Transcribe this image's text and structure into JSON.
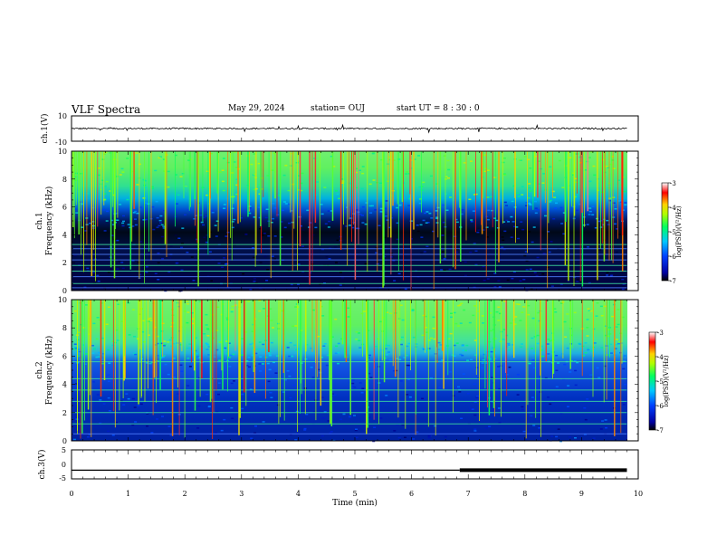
{
  "header": {
    "title": "VLF Spectra",
    "date": "May 29, 2024",
    "station": "station= OUJ",
    "start": "start  UT =   8  : 30 : 0"
  },
  "colors": {
    "waveform": "#000000",
    "background": "#ffffff"
  },
  "chart_data": [
    {
      "type": "line",
      "id": "ch1-waveform",
      "ylabel": "ch.1(V)",
      "ylim": [
        -10,
        10
      ],
      "yticks": [
        "10",
        "-10"
      ],
      "description_values": {
        "baseline": 0,
        "typical_amplitude": 1,
        "spike_max": 3
      }
    },
    {
      "type": "heatmap",
      "id": "ch1-spectrogram",
      "ylabel_top": "ch.1",
      "ylabel": "Frequency (kHz)",
      "ylim": [
        0,
        10
      ],
      "yticks": [
        "0",
        "2",
        "4",
        "6",
        "8",
        "10"
      ],
      "xlim": [
        0,
        10
      ],
      "colorbar": {
        "label": "log(PSD)(V²/Hz)",
        "range": [
          -7,
          -3
        ],
        "ticks": [
          "-3",
          "-4",
          "-5",
          "-6",
          "-7"
        ]
      },
      "bands_khz": [
        {
          "from": 0,
          "to": 4.5,
          "level": -6.6
        },
        {
          "from": 4.5,
          "to": 6.5,
          "level": -5.8
        },
        {
          "from": 6.5,
          "to": 10,
          "level": -4.6
        }
      ],
      "narrowband_lines_khz": [
        0.2,
        0.5,
        1.0,
        1.4,
        1.8,
        2.2,
        2.6,
        3.0,
        3.3
      ]
    },
    {
      "type": "heatmap",
      "id": "ch2-spectrogram",
      "ylabel_top": "ch.2",
      "ylabel": "Frequency (kHz)",
      "ylim": [
        0,
        10
      ],
      "yticks": [
        "0",
        "2",
        "4",
        "6",
        "8",
        "10"
      ],
      "xlim": [
        0,
        10
      ],
      "colorbar": {
        "label": "log(PSD)(V²/Hz)",
        "range": [
          -7,
          -3
        ],
        "ticks": [
          "-3",
          "-4",
          "-5",
          "-6",
          "-7"
        ]
      },
      "bands_khz": [
        {
          "from": 0,
          "to": 5.5,
          "level": -6.2
        },
        {
          "from": 5.5,
          "to": 7,
          "level": -5.4
        },
        {
          "from": 7,
          "to": 10,
          "level": -4.6
        }
      ],
      "narrowband_lines_khz": [
        0.5,
        1.2,
        2.0,
        2.8,
        3.6,
        4.4,
        5.6
      ]
    },
    {
      "type": "line",
      "id": "ch3-signal",
      "ylabel": "ch.3(V)",
      "ylim": [
        -5,
        5
      ],
      "yticks": [
        "5",
        "0",
        "-5"
      ],
      "xlabel": "Time  (min)",
      "xlim": [
        0,
        10
      ],
      "xticks": [
        "0",
        "1",
        "2",
        "3",
        "4",
        "5",
        "6",
        "7",
        "8",
        "9",
        "10"
      ],
      "segments": [
        {
          "x_from": 0,
          "x_to": 6.85,
          "y": -2,
          "weight": "thin"
        },
        {
          "x_from": 6.85,
          "x_to": 9.8,
          "y": -2,
          "weight": "thick"
        }
      ]
    }
  ]
}
